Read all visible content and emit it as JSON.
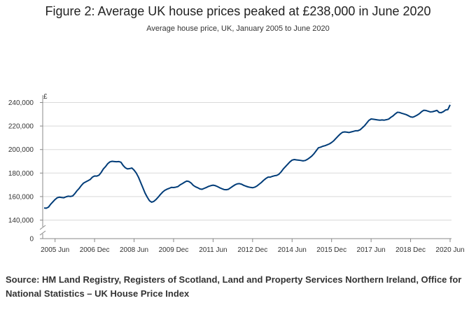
{
  "figure": {
    "title": "Figure 2: Average UK house prices peaked at £238,000 in June 2020",
    "subtitle": "Average house price, UK, January 2005 to June 2020",
    "source": "Source: HM Land Registry, Registers of Scotland, Land and Property Services Northern Ireland, Office for National Statistics – UK House Price Index"
  },
  "chart_data": {
    "type": "line",
    "title": "Figure 2: Average UK house prices peaked at £238,000 in June 2020",
    "subtitle": "Average house price, UK, January 2005 to June 2020",
    "xlabel": "",
    "ylabel": "£",
    "ylim": [
      130000,
      245000
    ],
    "axis_break": true,
    "yticks": [
      0,
      140000,
      160000,
      180000,
      200000,
      220000,
      240000
    ],
    "ytick_labels": [
      "0",
      "140,000",
      "160,000",
      "180,000",
      "200,000",
      "220,000",
      "240,000"
    ],
    "xtick_labels": [
      "2005 Jun",
      "2006 Dec",
      "2008 Jun",
      "2009 Dec",
      "2011 Jun",
      "2012 Dec",
      "2014 Jun",
      "2015 Dec",
      "2017 Jun",
      "2018 Dec",
      "2020 Jun"
    ],
    "xtick_index": [
      5,
      23,
      41,
      59,
      77,
      95,
      113,
      131,
      149,
      167,
      185
    ],
    "grid": true,
    "line_color": "#003c78",
    "series": [
      {
        "name": "Average house price",
        "x_start": "2005-01",
        "frequency": "monthly",
        "values": [
          150300,
          150100,
          151000,
          153500,
          155500,
          157500,
          159000,
          159500,
          159200,
          159000,
          159800,
          160300,
          160100,
          160500,
          162500,
          165000,
          167000,
          169500,
          171500,
          172500,
          173500,
          174500,
          176500,
          177500,
          177400,
          178200,
          180500,
          183500,
          185500,
          188000,
          189500,
          190000,
          189800,
          189600,
          189800,
          189200,
          186500,
          184500,
          183500,
          183800,
          184300,
          182500,
          180000,
          176500,
          172000,
          167500,
          163000,
          159500,
          156500,
          155200,
          155900,
          157500,
          159500,
          161800,
          163800,
          165300,
          166300,
          167000,
          167800,
          167700,
          168000,
          168500,
          170000,
          171000,
          172200,
          173200,
          172800,
          171500,
          169500,
          168300,
          167500,
          166500,
          166200,
          167000,
          167800,
          168700,
          169300,
          169700,
          169300,
          168500,
          167500,
          166700,
          166000,
          165800,
          166200,
          167500,
          168800,
          170000,
          170800,
          171000,
          170500,
          169500,
          168800,
          168200,
          167800,
          167500,
          168000,
          169000,
          170500,
          172000,
          173800,
          175300,
          176500,
          176500,
          177200,
          177700,
          178000,
          179000,
          181000,
          183500,
          185500,
          187500,
          189500,
          191000,
          191500,
          191200,
          191000,
          190700,
          190400,
          190700,
          191700,
          193000,
          194500,
          196500,
          199000,
          201500,
          202000,
          202800,
          203300,
          204000,
          204800,
          206000,
          207500,
          209500,
          211500,
          213300,
          214700,
          215000,
          214800,
          214500,
          215000,
          215500,
          216000,
          216000,
          216800,
          218500,
          220200,
          222500,
          224800,
          226000,
          225800,
          225500,
          225200,
          225000,
          225200,
          225000,
          225400,
          225900,
          227400,
          228600,
          230300,
          231700,
          231500,
          230800,
          230300,
          229700,
          228800,
          227800,
          227500,
          228300,
          229300,
          230500,
          232200,
          233400,
          233200,
          232600,
          232000,
          232200,
          232700,
          233300,
          231500,
          231400,
          232300,
          233700,
          234000,
          238000
        ]
      }
    ]
  }
}
